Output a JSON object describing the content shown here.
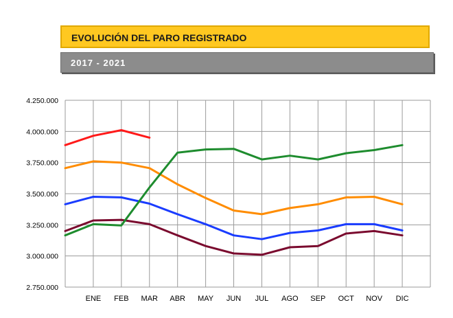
{
  "header": {
    "title": "EVOLUCIÓN DEL PARO REGISTRADO",
    "subtitle": "2017 - 2021"
  },
  "chart_data": {
    "type": "line",
    "title": "EVOLUCIÓN DEL PARO REGISTRADO",
    "subtitle": "2017 - 2021",
    "xlabel": "",
    "ylabel": "",
    "categories": [
      "",
      "ENE",
      "FEB",
      "MAR",
      "ABR",
      "MAY",
      "JUN",
      "JUL",
      "AGO",
      "SEP",
      "OCT",
      "NOV",
      "DIC"
    ],
    "ylim": [
      2750000,
      4250000
    ],
    "y_ticks": [
      2750000,
      3000000,
      3250000,
      3500000,
      3750000,
      4000000,
      4250000
    ],
    "y_tick_labels": [
      "2.750.000",
      "3.000.000",
      "3.250.000",
      "3.500.000",
      "3.750.000",
      "4.000.000",
      "4.250.000"
    ],
    "grid": true,
    "legend": "none",
    "series": [
      {
        "color": "#ff8c00",
        "values": [
          3705000,
          3760000,
          3750000,
          3705000,
          3575000,
          3465000,
          3365000,
          3335000,
          3385000,
          3415000,
          3470000,
          3475000,
          3415000
        ]
      },
      {
        "color": "#1a3cff",
        "values": [
          3415000,
          3475000,
          3470000,
          3420000,
          3335000,
          3255000,
          3165000,
          3135000,
          3185000,
          3205000,
          3255000,
          3255000,
          3205000
        ]
      },
      {
        "color": "#7a0a2e",
        "values": [
          3200000,
          3285000,
          3290000,
          3255000,
          3165000,
          3080000,
          3020000,
          3010000,
          3070000,
          3080000,
          3180000,
          3200000,
          3165000
        ]
      },
      {
        "color": "#1e8c2e",
        "values": [
          3165000,
          3255000,
          3245000,
          3550000,
          3830000,
          3855000,
          3860000,
          3775000,
          3805000,
          3775000,
          3825000,
          3850000,
          3890000
        ]
      },
      {
        "color": "#ff1a1a",
        "values": [
          3890000,
          3965000,
          4010000,
          3950000,
          null,
          null,
          null,
          null,
          null,
          null,
          null,
          null,
          null
        ]
      }
    ]
  }
}
